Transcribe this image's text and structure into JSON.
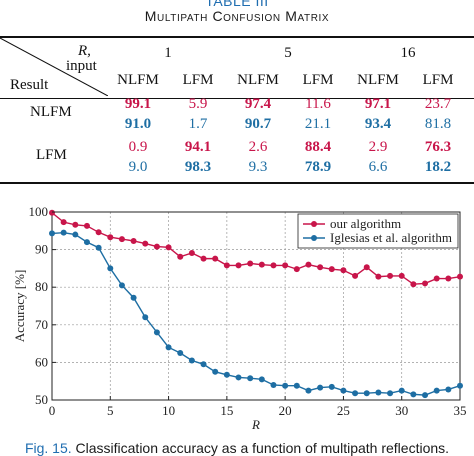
{
  "table": {
    "number": "TABLE III",
    "title": "Multipath Confusion Matrix",
    "header": {
      "r_label": "R,",
      "input_label": "input",
      "result_label": "Result",
      "r_values": [
        "1",
        "5",
        "16"
      ],
      "classes": [
        "NLFM",
        "LFM",
        "NLFM",
        "LFM",
        "NLFM",
        "LFM"
      ]
    },
    "rows": [
      {
        "label": "NLFM",
        "red": [
          "99.1",
          "5.9",
          "97.4",
          "11.6",
          "97.1",
          "23.7"
        ],
        "blue": [
          "91.0",
          "1.7",
          "90.7",
          "21.1",
          "93.4",
          "81.8"
        ]
      },
      {
        "label": "LFM",
        "red": [
          "0.9",
          "94.1",
          "2.6",
          "88.4",
          "2.9",
          "76.3"
        ],
        "blue": [
          "9.0",
          "98.3",
          "9.3",
          "78.9",
          "6.6",
          "18.2"
        ]
      }
    ],
    "bold_columns": {
      "NLFM": [
        0,
        2,
        4
      ],
      "LFM": [
        1,
        3,
        5
      ]
    },
    "colors": {
      "ours": "#c8154a",
      "iglesias": "#1e6ea3"
    }
  },
  "chart_data": {
    "type": "line",
    "xlabel": "R",
    "ylabel": "Accuracy [%]",
    "xlim": [
      0,
      35
    ],
    "ylim": [
      50,
      100
    ],
    "xticks": [
      0,
      5,
      10,
      15,
      20,
      25,
      30,
      35
    ],
    "yticks": [
      50,
      60,
      70,
      80,
      90,
      100
    ],
    "grid": true,
    "legend_position": "top-right",
    "x": [
      0,
      1,
      2,
      3,
      4,
      5,
      6,
      7,
      8,
      9,
      10,
      11,
      12,
      13,
      14,
      15,
      16,
      17,
      18,
      19,
      20,
      21,
      22,
      23,
      24,
      25,
      26,
      27,
      28,
      29,
      30,
      31,
      32,
      33,
      34,
      35
    ],
    "series": [
      {
        "name": "our algorithm",
        "legend_text": "our algorithm",
        "color": "#c8154a",
        "values": [
          99.8,
          97.3,
          96.6,
          96.3,
          94.6,
          93.3,
          92.8,
          92.3,
          91.6,
          90.8,
          90.6,
          88.1,
          89.1,
          87.6,
          87.6,
          85.8,
          85.8,
          86.3,
          86.0,
          85.8,
          85.8,
          84.8,
          86.0,
          85.3,
          84.8,
          84.5,
          83.0,
          85.3,
          82.8,
          83.0,
          83.0,
          80.8,
          81.0,
          82.3,
          82.3,
          82.8
        ]
      },
      {
        "name": "Iglesias et al. algorithm",
        "legend_text": "Iglesias et al. algorithm",
        "color": "#1e6ea3",
        "values": [
          94.3,
          94.5,
          94.0,
          92.0,
          90.5,
          85.0,
          80.5,
          77.2,
          72.0,
          68.0,
          64.0,
          62.5,
          60.5,
          59.5,
          57.5,
          56.7,
          56.0,
          55.8,
          55.5,
          54.0,
          53.8,
          53.8,
          52.5,
          53.3,
          53.5,
          52.5,
          51.8,
          51.8,
          52.0,
          51.8,
          52.5,
          51.5,
          51.3,
          52.5,
          52.8,
          53.8
        ]
      }
    ]
  },
  "caption": {
    "number": "Fig. 15.",
    "text": "Classification accuracy as a function of multipath reflections."
  }
}
